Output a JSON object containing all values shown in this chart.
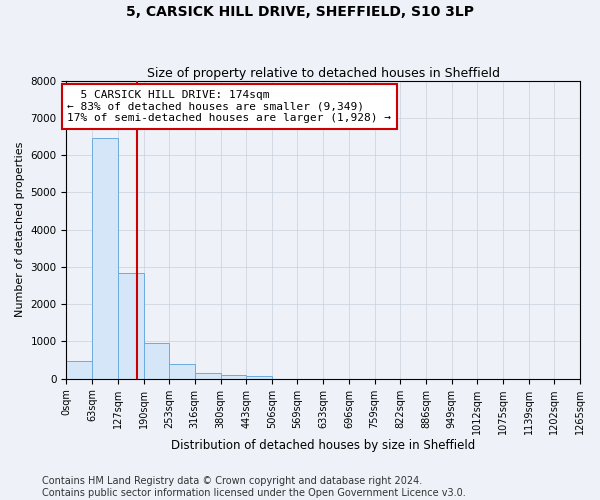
{
  "title1": "5, CARSICK HILL DRIVE, SHEFFIELD, S10 3LP",
  "title2": "Size of property relative to detached houses in Sheffield",
  "xlabel": "Distribution of detached houses by size in Sheffield",
  "ylabel": "Number of detached properties",
  "footnote": "Contains HM Land Registry data © Crown copyright and database right 2024.\nContains public sector information licensed under the Open Government Licence v3.0.",
  "annotation_line1": "5 CARSICK HILL DRIVE: 174sqm",
  "annotation_line2": "← 83% of detached houses are smaller (9,349)",
  "annotation_line3": "17% of semi-detached houses are larger (1,928) →",
  "bin_edges": [
    0,
    63,
    127,
    190,
    253,
    316,
    380,
    443,
    506,
    569,
    633,
    696,
    759,
    822,
    886,
    949,
    1012,
    1075,
    1139,
    1202,
    1265
  ],
  "bin_labels": [
    "0sqm",
    "63sqm",
    "127sqm",
    "190sqm",
    "253sqm",
    "316sqm",
    "380sqm",
    "443sqm",
    "506sqm",
    "569sqm",
    "633sqm",
    "696sqm",
    "759sqm",
    "822sqm",
    "886sqm",
    "949sqm",
    "1012sqm",
    "1075sqm",
    "1139sqm",
    "1202sqm",
    "1265sqm"
  ],
  "counts": [
    480,
    6450,
    2850,
    950,
    390,
    150,
    100,
    80,
    0,
    0,
    0,
    0,
    0,
    0,
    0,
    0,
    0,
    0,
    0,
    0
  ],
  "bar_color": "#d4e6f7",
  "bar_edge_color": "#6aabdf",
  "vline_color": "#cc0000",
  "vline_x": 174,
  "ylim": [
    0,
    8000
  ],
  "yticks": [
    0,
    1000,
    2000,
    3000,
    4000,
    5000,
    6000,
    7000,
    8000
  ],
  "grid_color": "#c8d0dc",
  "background_color": "#eef2f8",
  "title1_fontsize": 10,
  "title2_fontsize": 9,
  "annotation_fontsize": 8,
  "tick_fontsize": 7,
  "xlabel_fontsize": 8.5,
  "ylabel_fontsize": 8,
  "footnote_fontsize": 7
}
